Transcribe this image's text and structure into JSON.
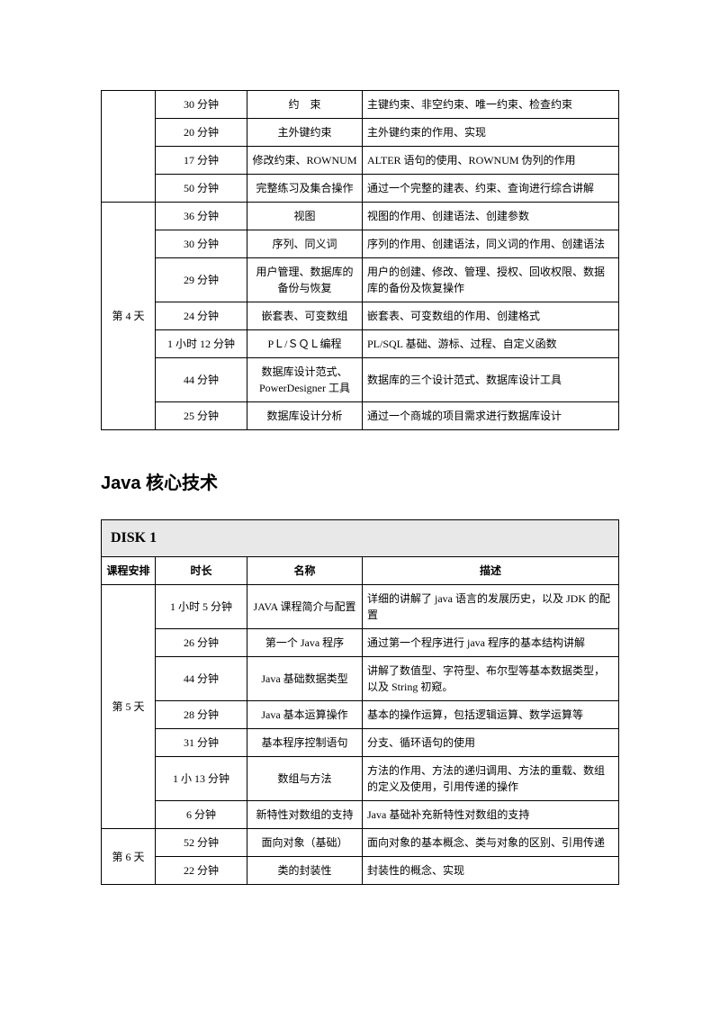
{
  "table1": {
    "blank_day": "",
    "rows_top": [
      {
        "dur": "30 分钟",
        "name": "约　束",
        "desc": "主键约束、非空约束、唯一约束、检查约束"
      },
      {
        "dur": "20 分钟",
        "name": "主外键约束",
        "desc": "主外键约束的作用、实现"
      },
      {
        "dur": "17 分钟",
        "name": "修改约束、ROWNUM",
        "desc": "ALTER 语句的使用、ROWNUM 伪列的作用"
      },
      {
        "dur": "50 分钟",
        "name": "完整练习及集合操作",
        "desc": "通过一个完整的建表、约束、查询进行综合讲解"
      }
    ],
    "day4_label": "第 4 天",
    "rows_day4": [
      {
        "dur": "36 分钟",
        "name": "视图",
        "desc": "视图的作用、创建语法、创建参数"
      },
      {
        "dur": "30 分钟",
        "name": "序列、同义词",
        "desc": "序列的作用、创建语法，同义词的作用、创建语法"
      },
      {
        "dur": "29 分钟",
        "name": "用户管理、数据库的备份与恢复",
        "desc": "用户的创建、修改、管理、授权、回收权限、数据库的备份及恢复操作"
      },
      {
        "dur": "24 分钟",
        "name": "嵌套表、可变数组",
        "desc": "嵌套表、可变数组的作用、创建格式"
      },
      {
        "dur": "1 小时 12 分钟",
        "name": "PＬ/ＳＱＬ编程",
        "desc": "PL/SQL 基础、游标、过程、自定义函数"
      },
      {
        "dur": "44 分钟",
        "name": "数据库设计范式、PowerDesigner 工具",
        "desc": "数据库的三个设计范式、数据库设计工具"
      },
      {
        "dur": "25 分钟",
        "name": "数据库设计分析",
        "desc": "通过一个商城的项目需求进行数据库设计"
      }
    ]
  },
  "section_title": "Java 核心技术",
  "table2": {
    "disk_title": "DISK 1",
    "head": {
      "c1": "课程安排",
      "c2": "时长",
      "c3": "名称",
      "c4": "描述"
    },
    "day5_label": "第 5 天",
    "rows_day5": [
      {
        "dur": "1 小时 5 分钟",
        "name": "JAVA 课程简介与配置",
        "desc": "详细的讲解了 java 语言的发展历史，以及 JDK 的配置"
      },
      {
        "dur": "26 分钟",
        "name": "第一个 Java 程序",
        "desc": "通过第一个程序进行 java 程序的基本结构讲解"
      },
      {
        "dur": "44 分钟",
        "name": "Java 基础数据类型",
        "desc": "讲解了数值型、字符型、布尔型等基本数据类型，以及 String 初窥。"
      },
      {
        "dur": "28 分钟",
        "name": "Java 基本运算操作",
        "desc": "基本的操作运算，包括逻辑运算、数学运算等"
      },
      {
        "dur": "31 分钟",
        "name": "基本程序控制语句",
        "desc": "分支、循环语句的使用"
      },
      {
        "dur": "1 小 13 分钟",
        "name": "数组与方法",
        "desc": "方法的作用、方法的递归调用、方法的重载、数组的定义及使用，引用传递的操作"
      },
      {
        "dur": "6 分钟",
        "name": "新特性对数组的支持",
        "desc": "Java 基础补充新特性对数组的支持"
      }
    ],
    "day6_label": "第 6 天",
    "rows_day6": [
      {
        "dur": "52 分钟",
        "name": "面向对象（基础）",
        "desc": "面向对象的基本概念、类与对象的区别、引用传递"
      },
      {
        "dur": "22 分钟",
        "name": "类的封装性",
        "desc": "封装性的概念、实现"
      }
    ]
  }
}
